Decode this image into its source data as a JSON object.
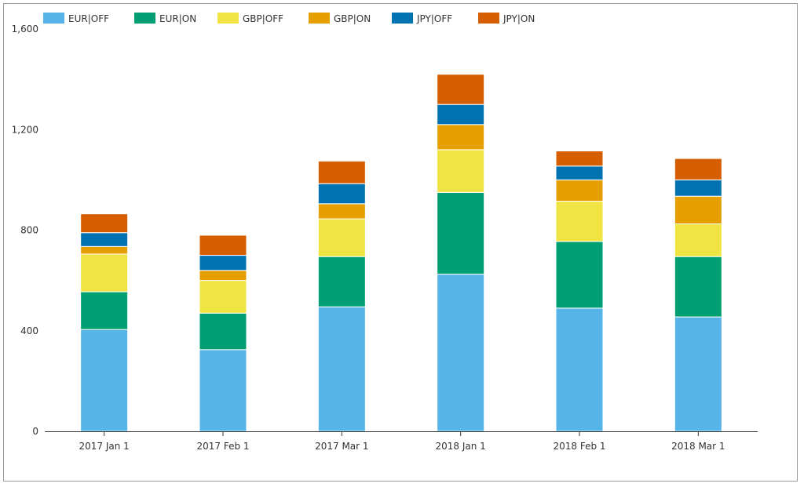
{
  "chart_data": {
    "type": "bar",
    "stacked": true,
    "title": "",
    "xlabel": "",
    "ylabel": "",
    "ylim": [
      0,
      1600
    ],
    "yticks": [
      0,
      400,
      800,
      1200,
      1600
    ],
    "ytick_labels": [
      "0",
      "400",
      "800",
      "1,200",
      "1,600"
    ],
    "grid": false,
    "legend_position": "top-left",
    "categories": [
      "2017 Jan 1",
      "2017 Feb 1",
      "2017 Mar 1",
      "2018 Jan 1",
      "2018 Feb 1",
      "2018 Mar 1"
    ],
    "series": [
      {
        "name": "EUR|OFF",
        "color": "#56b4e9",
        "values": [
          405,
          325,
          495,
          625,
          490,
          455
        ]
      },
      {
        "name": "EUR|ON",
        "color": "#009e73",
        "values": [
          150,
          145,
          200,
          325,
          265,
          240
        ]
      },
      {
        "name": "GBP|OFF",
        "color": "#f0e442",
        "values": [
          150,
          130,
          150,
          170,
          160,
          130
        ]
      },
      {
        "name": "GBP|ON",
        "color": "#e69f00",
        "values": [
          30,
          40,
          60,
          100,
          85,
          110
        ]
      },
      {
        "name": "JPY|OFF",
        "color": "#0072b2",
        "values": [
          55,
          60,
          80,
          80,
          55,
          65
        ]
      },
      {
        "name": "JPY|ON",
        "color": "#d55e00",
        "values": [
          75,
          80,
          90,
          120,
          60,
          85
        ]
      }
    ]
  }
}
